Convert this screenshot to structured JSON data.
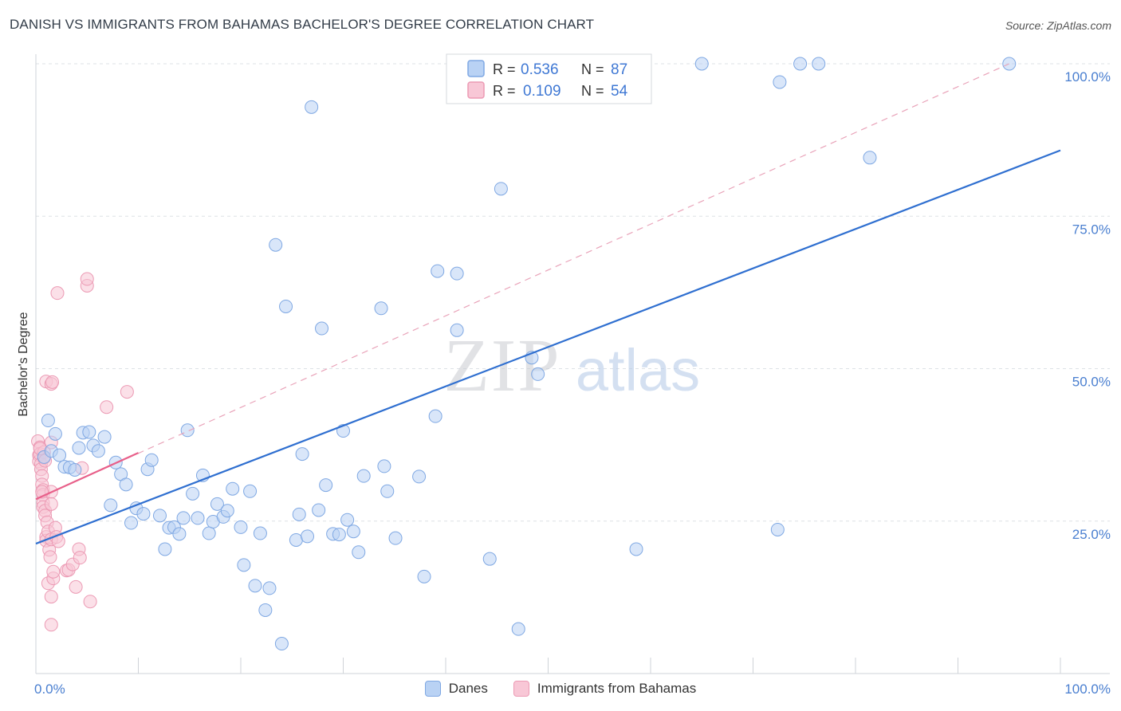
{
  "header": {
    "title": "DANISH VS IMMIGRANTS FROM BAHAMAS BACHELOR'S DEGREE CORRELATION CHART",
    "source": "Source: ZipAtlas.com"
  },
  "watermark": {
    "zip": "ZIP",
    "atlas": "atlas"
  },
  "stats": [
    {
      "r_label": "R =",
      "r_value": "0.536",
      "n_label": "N =",
      "n_value": "87",
      "color": "#b9d2f4"
    },
    {
      "r_label": "R =",
      "r_value": "0.109",
      "n_label": "N =",
      "n_value": "54",
      "color": "#f8c7d6"
    }
  ],
  "legend": {
    "danes": "Danes",
    "bahamas": "Immigrants from Bahamas"
  },
  "chart_data": {
    "type": "scatter",
    "title": "DANISH VS IMMIGRANTS FROM BAHAMAS BACHELOR'S DEGREE CORRELATION CHART",
    "xlabel": "",
    "ylabel": "Bachelor's Degree",
    "xlim": [
      0,
      100
    ],
    "ylim": [
      0,
      100
    ],
    "x_tick_labels": {
      "left": "0.0%",
      "right": "100.0%"
    },
    "y_ticks": [
      {
        "value": 25,
        "label": "25.0%"
      },
      {
        "value": 50,
        "label": "50.0%"
      },
      {
        "value": 75,
        "label": "75.0%"
      },
      {
        "value": 100,
        "label": "100.0%"
      }
    ],
    "grid": true,
    "series": [
      {
        "name": "Danes",
        "color": "#7fa8e3",
        "fill": "#b9d2f4",
        "points": [
          [
            0.8,
            35.5
          ],
          [
            1.2,
            41.5
          ],
          [
            1.5,
            36.5
          ],
          [
            1.9,
            39.3
          ],
          [
            2.3,
            35.8
          ],
          [
            2.8,
            33.9
          ],
          [
            3.3,
            33.8
          ],
          [
            3.8,
            33.4
          ],
          [
            4.2,
            37.0
          ],
          [
            4.6,
            39.5
          ],
          [
            5.2,
            39.6
          ],
          [
            5.6,
            37.4
          ],
          [
            6.1,
            36.5
          ],
          [
            6.7,
            38.8
          ],
          [
            7.3,
            27.6
          ],
          [
            7.8,
            34.6
          ],
          [
            8.3,
            32.7
          ],
          [
            8.8,
            31.0
          ],
          [
            9.3,
            24.7
          ],
          [
            9.8,
            27.1
          ],
          [
            10.5,
            26.2
          ],
          [
            10.9,
            33.5
          ],
          [
            11.3,
            35.0
          ],
          [
            12.1,
            25.9
          ],
          [
            12.6,
            20.4
          ],
          [
            13.0,
            23.9
          ],
          [
            13.5,
            24.0
          ],
          [
            14.0,
            22.9
          ],
          [
            14.4,
            25.5
          ],
          [
            14.8,
            39.9
          ],
          [
            15.3,
            29.5
          ],
          [
            15.8,
            25.5
          ],
          [
            16.3,
            32.5
          ],
          [
            16.9,
            23.0
          ],
          [
            17.3,
            24.9
          ],
          [
            17.7,
            27.8
          ],
          [
            18.3,
            25.7
          ],
          [
            18.7,
            26.7
          ],
          [
            19.2,
            30.3
          ],
          [
            20.0,
            24.0
          ],
          [
            20.3,
            17.8
          ],
          [
            20.9,
            29.9
          ],
          [
            21.4,
            14.4
          ],
          [
            21.9,
            23.0
          ],
          [
            22.4,
            10.4
          ],
          [
            22.8,
            14.0
          ],
          [
            23.4,
            70.3
          ],
          [
            24.0,
            4.9
          ],
          [
            24.4,
            60.2
          ],
          [
            25.4,
            21.9
          ],
          [
            25.7,
            26.1
          ],
          [
            26.0,
            36.0
          ],
          [
            26.5,
            22.5
          ],
          [
            26.9,
            92.9
          ],
          [
            27.6,
            26.8
          ],
          [
            27.9,
            56.6
          ],
          [
            28.3,
            30.9
          ],
          [
            29.0,
            22.9
          ],
          [
            29.6,
            22.8
          ],
          [
            30.0,
            39.8
          ],
          [
            30.4,
            25.2
          ],
          [
            31.0,
            23.3
          ],
          [
            31.5,
            19.9
          ],
          [
            32.0,
            32.4
          ],
          [
            33.7,
            59.9
          ],
          [
            34.0,
            34.0
          ],
          [
            34.3,
            29.9
          ],
          [
            35.1,
            22.2
          ],
          [
            37.4,
            32.3
          ],
          [
            37.9,
            15.9
          ],
          [
            39.0,
            42.2
          ],
          [
            39.2,
            66.0
          ],
          [
            41.1,
            65.6
          ],
          [
            41.1,
            56.3
          ],
          [
            44.3,
            18.8
          ],
          [
            45.4,
            79.5
          ],
          [
            47.1,
            7.3
          ],
          [
            48.4,
            51.8
          ],
          [
            49.0,
            49.1
          ],
          [
            58.6,
            20.4
          ],
          [
            65.0,
            100.0
          ],
          [
            72.4,
            23.6
          ],
          [
            72.6,
            97.0
          ],
          [
            74.6,
            100.0
          ],
          [
            76.4,
            100.0
          ],
          [
            81.4,
            84.6
          ],
          [
            95.0,
            100.0
          ]
        ],
        "trend": {
          "x1": 0,
          "y1": 21.3,
          "x2": 100,
          "y2": 85.8,
          "color": "#2f6fd0"
        }
      },
      {
        "name": "Immigrants from Bahamas",
        "color": "#ec9ab4",
        "fill": "#f8c7d6",
        "points": [
          [
            0.2,
            38.1
          ],
          [
            0.3,
            35.8
          ],
          [
            0.3,
            34.8
          ],
          [
            0.4,
            37.1
          ],
          [
            0.4,
            36.0
          ],
          [
            0.5,
            34.4
          ],
          [
            0.5,
            33.5
          ],
          [
            0.6,
            32.4
          ],
          [
            0.6,
            31.0
          ],
          [
            0.7,
            30.1
          ],
          [
            0.7,
            29.3
          ],
          [
            0.7,
            28.0
          ],
          [
            0.7,
            27.3
          ],
          [
            0.8,
            36.3
          ],
          [
            0.8,
            35.4
          ],
          [
            0.9,
            34.9
          ],
          [
            0.9,
            26.7
          ],
          [
            0.9,
            25.9
          ],
          [
            1.0,
            22.4
          ],
          [
            1.0,
            21.8
          ],
          [
            1.0,
            47.9
          ],
          [
            1.1,
            24.8
          ],
          [
            1.2,
            14.8
          ],
          [
            1.2,
            23.3
          ],
          [
            1.3,
            20.3
          ],
          [
            1.4,
            19.1
          ],
          [
            1.5,
            22.0
          ],
          [
            1.5,
            47.5
          ],
          [
            1.5,
            29.8
          ],
          [
            1.5,
            27.8
          ],
          [
            1.5,
            12.6
          ],
          [
            1.5,
            8.0
          ],
          [
            1.5,
            37.9
          ],
          [
            1.6,
            47.8
          ],
          [
            1.7,
            15.6
          ],
          [
            1.7,
            16.7
          ],
          [
            1.9,
            23.9
          ],
          [
            2.0,
            22.4
          ],
          [
            2.1,
            62.4
          ],
          [
            2.2,
            21.7
          ],
          [
            3.0,
            16.9
          ],
          [
            3.2,
            17.0
          ],
          [
            3.6,
            17.9
          ],
          [
            3.9,
            14.2
          ],
          [
            4.2,
            20.4
          ],
          [
            4.3,
            19.0
          ],
          [
            4.5,
            33.7
          ],
          [
            5.0,
            63.6
          ],
          [
            5.0,
            64.7
          ],
          [
            5.3,
            11.8
          ],
          [
            6.9,
            43.7
          ],
          [
            8.9,
            46.2
          ],
          [
            0.4,
            36.9
          ],
          [
            0.6,
            29.8
          ]
        ],
        "trend": {
          "x1": 0,
          "y1": 28.6,
          "x2": 10,
          "y2": 36.2,
          "color": "#e8608a"
        },
        "dashed_projection": {
          "x1": 0,
          "y1": 28.6,
          "x2": 95,
          "y2": 100.0,
          "color": "#e9a3b9"
        }
      }
    ]
  }
}
